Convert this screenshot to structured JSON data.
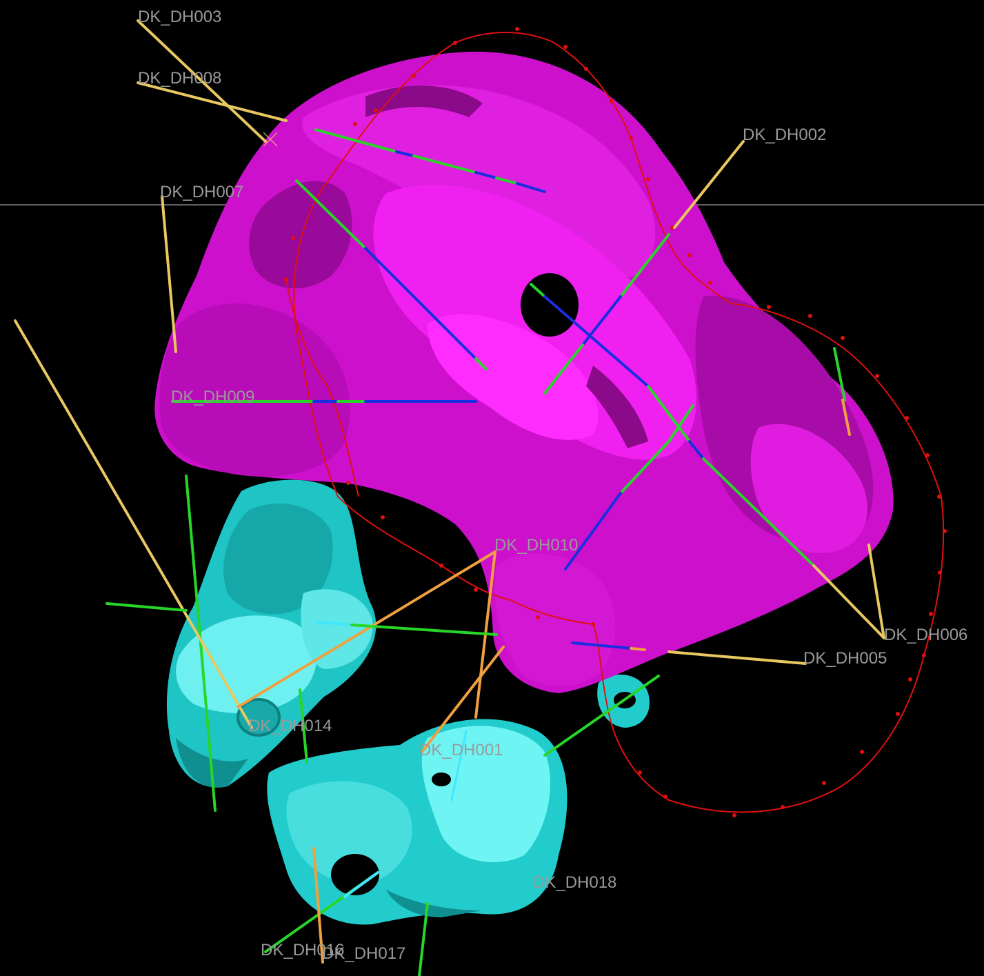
{
  "viewer": {
    "background": "#000000",
    "colors": {
      "main_body": "#cc10cc",
      "main_body_dark": "#8a0a8a",
      "main_body_light": "#f020f0",
      "secondary_bodies": "#22cccc",
      "secondary_bodies_dark": "#0f8f8f",
      "secondary_bodies_light": "#6ff4f4",
      "outline": "#e01010",
      "trace_yellow": "#e8c860",
      "trace_green": "#28d628",
      "trace_blue": "#1a2ee0",
      "trace_orange": "#f0a040",
      "trace_cyan": "#40e8ff",
      "horizon": "#bfbfbf",
      "label": "#9a9a9a"
    }
  },
  "drillholes": [
    {
      "id": "DK_DH003"
    },
    {
      "id": "DK_DH008"
    },
    {
      "id": "DK_DH002"
    },
    {
      "id": "DK_DH007"
    },
    {
      "id": "DK_DH009"
    },
    {
      "id": "DK_DH010"
    },
    {
      "id": "DK_DH006"
    },
    {
      "id": "DK_DH005"
    },
    {
      "id": "DK_DH014"
    },
    {
      "id": "DK_DH001"
    },
    {
      "id": "DK_DH018"
    },
    {
      "id": "DK_DH016"
    },
    {
      "id": "DK_DH017"
    }
  ]
}
